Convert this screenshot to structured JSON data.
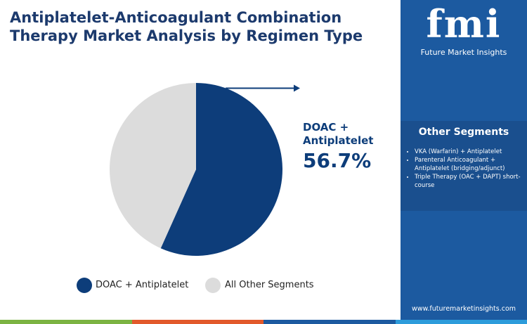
{
  "chart_data": {
    "type": "pie",
    "title": "Antiplatelet-Anticoagulant Combination Therapy Market Analysis by Regimen Type",
    "categories": [
      "DOAC + Antiplatelet",
      "All Other Segments"
    ],
    "values": [
      56.7,
      43.3
    ],
    "value_labels": [
      "56.7%",
      null
    ],
    "colors": [
      "#0d3d7a",
      "#dcdcdc"
    ]
  },
  "side_panel": {
    "logo": {
      "mark": "fmi",
      "name": "Future Market Insights"
    },
    "other_segments": {
      "title": "Other Segments",
      "items": [
        "VKA (Warfarin) + Antiplatelet",
        "Parenteral Anticoagulant + Antiplatelet (bridging/adjunct)",
        "Triple Therapy (OAC + DAPT) short-course"
      ]
    },
    "website": "www.futuremarketinsights.com"
  }
}
